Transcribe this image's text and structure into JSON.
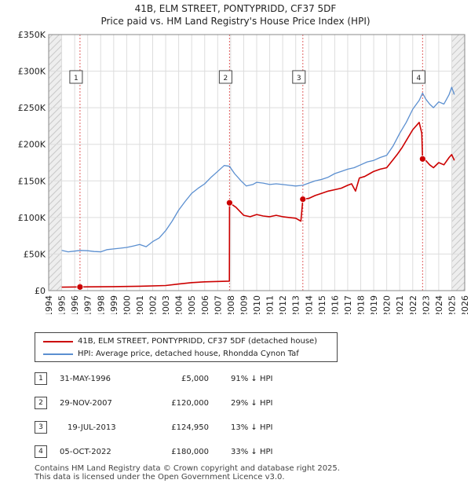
{
  "title_line1": "41B, ELM STREET, PONTYPRIDD, CF37 5DF",
  "title_line2": "Price paid vs. HM Land Registry's House Price Index (HPI)",
  "colors": {
    "property": "#cc0000",
    "hpi": "#5b8fd0",
    "vline": "#e06060",
    "grid": "#dddddd",
    "shade": "#e8eef8"
  },
  "chart_data": {
    "type": "line",
    "title": "Price paid vs. HM Land Registry's House Price Index (HPI)",
    "xlim": [
      1994,
      2026
    ],
    "ylim": [
      0,
      350000
    ],
    "x_ticks": [
      "1994",
      "1995",
      "1996",
      "1997",
      "1998",
      "1999",
      "2000",
      "2001",
      "2002",
      "2003",
      "2004",
      "2005",
      "2006",
      "2007",
      "2008",
      "2009",
      "2010",
      "2011",
      "2012",
      "2013",
      "2014",
      "2015",
      "2016",
      "2017",
      "2018",
      "2019",
      "2020",
      "2021",
      "2022",
      "2023",
      "2024",
      "2025",
      "2026"
    ],
    "y_ticks": [
      {
        "value": 0,
        "label": "£0"
      },
      {
        "value": 50000,
        "label": "£50K"
      },
      {
        "value": 100000,
        "label": "£100K"
      },
      {
        "value": 150000,
        "label": "£150K"
      },
      {
        "value": 200000,
        "label": "£200K"
      },
      {
        "value": 250000,
        "label": "£250K"
      },
      {
        "value": 300000,
        "label": "£300K"
      },
      {
        "value": 350000,
        "label": "£350K"
      }
    ],
    "hatched_before": 1995,
    "hatched_after": 2025,
    "series": [
      {
        "name": "41B, ELM STREET, PONTYPRIDD, CF37 5DF (detached house)",
        "color": "#cc0000",
        "points": [
          [
            1995,
            4700
          ],
          [
            1996.41,
            5000
          ],
          [
            1997,
            5200
          ],
          [
            1999,
            5500
          ],
          [
            2001,
            6000
          ],
          [
            2003,
            7000
          ],
          [
            2004,
            9000
          ],
          [
            2005,
            11000
          ],
          [
            2006,
            12000
          ],
          [
            2007.9,
            13000
          ],
          [
            2007.91,
            120000
          ],
          [
            2008.4,
            114000
          ],
          [
            2009,
            103000
          ],
          [
            2009.5,
            101000
          ],
          [
            2010,
            104000
          ],
          [
            2010.5,
            102000
          ],
          [
            2011,
            101000
          ],
          [
            2011.5,
            103000
          ],
          [
            2012,
            101000
          ],
          [
            2012.5,
            100000
          ],
          [
            2013,
            99000
          ],
          [
            2013.4,
            95000
          ],
          [
            2013.55,
            124950
          ],
          [
            2014,
            126000
          ],
          [
            2014.5,
            130000
          ],
          [
            2015,
            133000
          ],
          [
            2015.5,
            136000
          ],
          [
            2016,
            138000
          ],
          [
            2016.5,
            140000
          ],
          [
            2017,
            144000
          ],
          [
            2017.3,
            146000
          ],
          [
            2017.6,
            136000
          ],
          [
            2017.9,
            154000
          ],
          [
            2018.3,
            156000
          ],
          [
            2018.7,
            160000
          ],
          [
            2019,
            163000
          ],
          [
            2019.5,
            166000
          ],
          [
            2020,
            168000
          ],
          [
            2020.4,
            177000
          ],
          [
            2020.8,
            186000
          ],
          [
            2021.2,
            196000
          ],
          [
            2021.6,
            208000
          ],
          [
            2022,
            220000
          ],
          [
            2022.5,
            230000
          ],
          [
            2022.7,
            215000
          ],
          [
            2022.76,
            180000
          ],
          [
            2023,
            178000
          ],
          [
            2023.3,
            172000
          ],
          [
            2023.6,
            168000
          ],
          [
            2024,
            175000
          ],
          [
            2024.4,
            172000
          ],
          [
            2024.8,
            182000
          ],
          [
            2025,
            186000
          ],
          [
            2025.2,
            178000
          ]
        ]
      },
      {
        "name": "HPI: Average price, detached house, Rhondda Cynon Taf",
        "color": "#5b8fd0",
        "points": [
          [
            1995,
            55000
          ],
          [
            1995.5,
            53000
          ],
          [
            1996,
            54000
          ],
          [
            1996.41,
            55000
          ],
          [
            1997,
            54500
          ],
          [
            1997.5,
            53500
          ],
          [
            1998,
            53000
          ],
          [
            1998.5,
            56000
          ],
          [
            1999,
            57000
          ],
          [
            1999.5,
            58000
          ],
          [
            2000,
            59000
          ],
          [
            2000.5,
            61000
          ],
          [
            2001,
            63000
          ],
          [
            2001.5,
            60000
          ],
          [
            2002,
            67000
          ],
          [
            2002.5,
            72000
          ],
          [
            2003,
            82000
          ],
          [
            2003.5,
            95000
          ],
          [
            2004,
            110000
          ],
          [
            2004.5,
            122000
          ],
          [
            2005,
            133000
          ],
          [
            2005.5,
            140000
          ],
          [
            2006,
            146000
          ],
          [
            2006.5,
            155000
          ],
          [
            2007,
            163000
          ],
          [
            2007.5,
            171000
          ],
          [
            2007.91,
            170000
          ],
          [
            2008.3,
            160000
          ],
          [
            2008.8,
            150000
          ],
          [
            2009.2,
            143000
          ],
          [
            2009.7,
            145000
          ],
          [
            2010,
            148000
          ],
          [
            2010.5,
            147000
          ],
          [
            2011,
            145000
          ],
          [
            2011.5,
            146000
          ],
          [
            2012,
            145000
          ],
          [
            2012.5,
            144000
          ],
          [
            2013,
            143000
          ],
          [
            2013.55,
            144000
          ],
          [
            2014,
            147000
          ],
          [
            2014.5,
            150000
          ],
          [
            2015,
            152000
          ],
          [
            2015.5,
            155000
          ],
          [
            2016,
            160000
          ],
          [
            2016.5,
            163000
          ],
          [
            2017,
            166000
          ],
          [
            2017.5,
            168000
          ],
          [
            2018,
            172000
          ],
          [
            2018.5,
            176000
          ],
          [
            2019,
            178000
          ],
          [
            2019.5,
            182000
          ],
          [
            2020,
            185000
          ],
          [
            2020.5,
            198000
          ],
          [
            2021,
            215000
          ],
          [
            2021.5,
            230000
          ],
          [
            2022,
            248000
          ],
          [
            2022.5,
            260000
          ],
          [
            2022.76,
            270000
          ],
          [
            2023,
            262000
          ],
          [
            2023.3,
            255000
          ],
          [
            2023.6,
            250000
          ],
          [
            2024,
            258000
          ],
          [
            2024.4,
            255000
          ],
          [
            2024.8,
            268000
          ],
          [
            2025,
            278000
          ],
          [
            2025.2,
            268000
          ]
        ]
      }
    ],
    "sales": [
      {
        "id": "1",
        "x": 1996.41,
        "price": 5000
      },
      {
        "id": "2",
        "x": 2007.91,
        "price": 120000
      },
      {
        "id": "3",
        "x": 2013.55,
        "price": 124950
      },
      {
        "id": "4",
        "x": 2022.76,
        "price": 180000
      }
    ]
  },
  "legend": {
    "property_label": "41B, ELM STREET, PONTYPRIDD, CF37 5DF (detached house)",
    "hpi_label": "HPI: Average price, detached house, Rhondda Cynon Taf"
  },
  "transactions": [
    {
      "num": "1",
      "date": "31-MAY-1996",
      "price": "£5,000",
      "hpi": "91% ↓ HPI"
    },
    {
      "num": "2",
      "date": "29-NOV-2007",
      "price": "£120,000",
      "hpi": "29% ↓ HPI"
    },
    {
      "num": "3",
      "date": "19-JUL-2013",
      "price": "£124,950",
      "hpi": "13% ↓ HPI"
    },
    {
      "num": "4",
      "date": "05-OCT-2022",
      "price": "£180,000",
      "hpi": "33% ↓ HPI"
    }
  ],
  "footer": {
    "line1": "Contains HM Land Registry data © Crown copyright and database right 2025.",
    "line2": "This data is licensed under the Open Government Licence v3.0."
  }
}
